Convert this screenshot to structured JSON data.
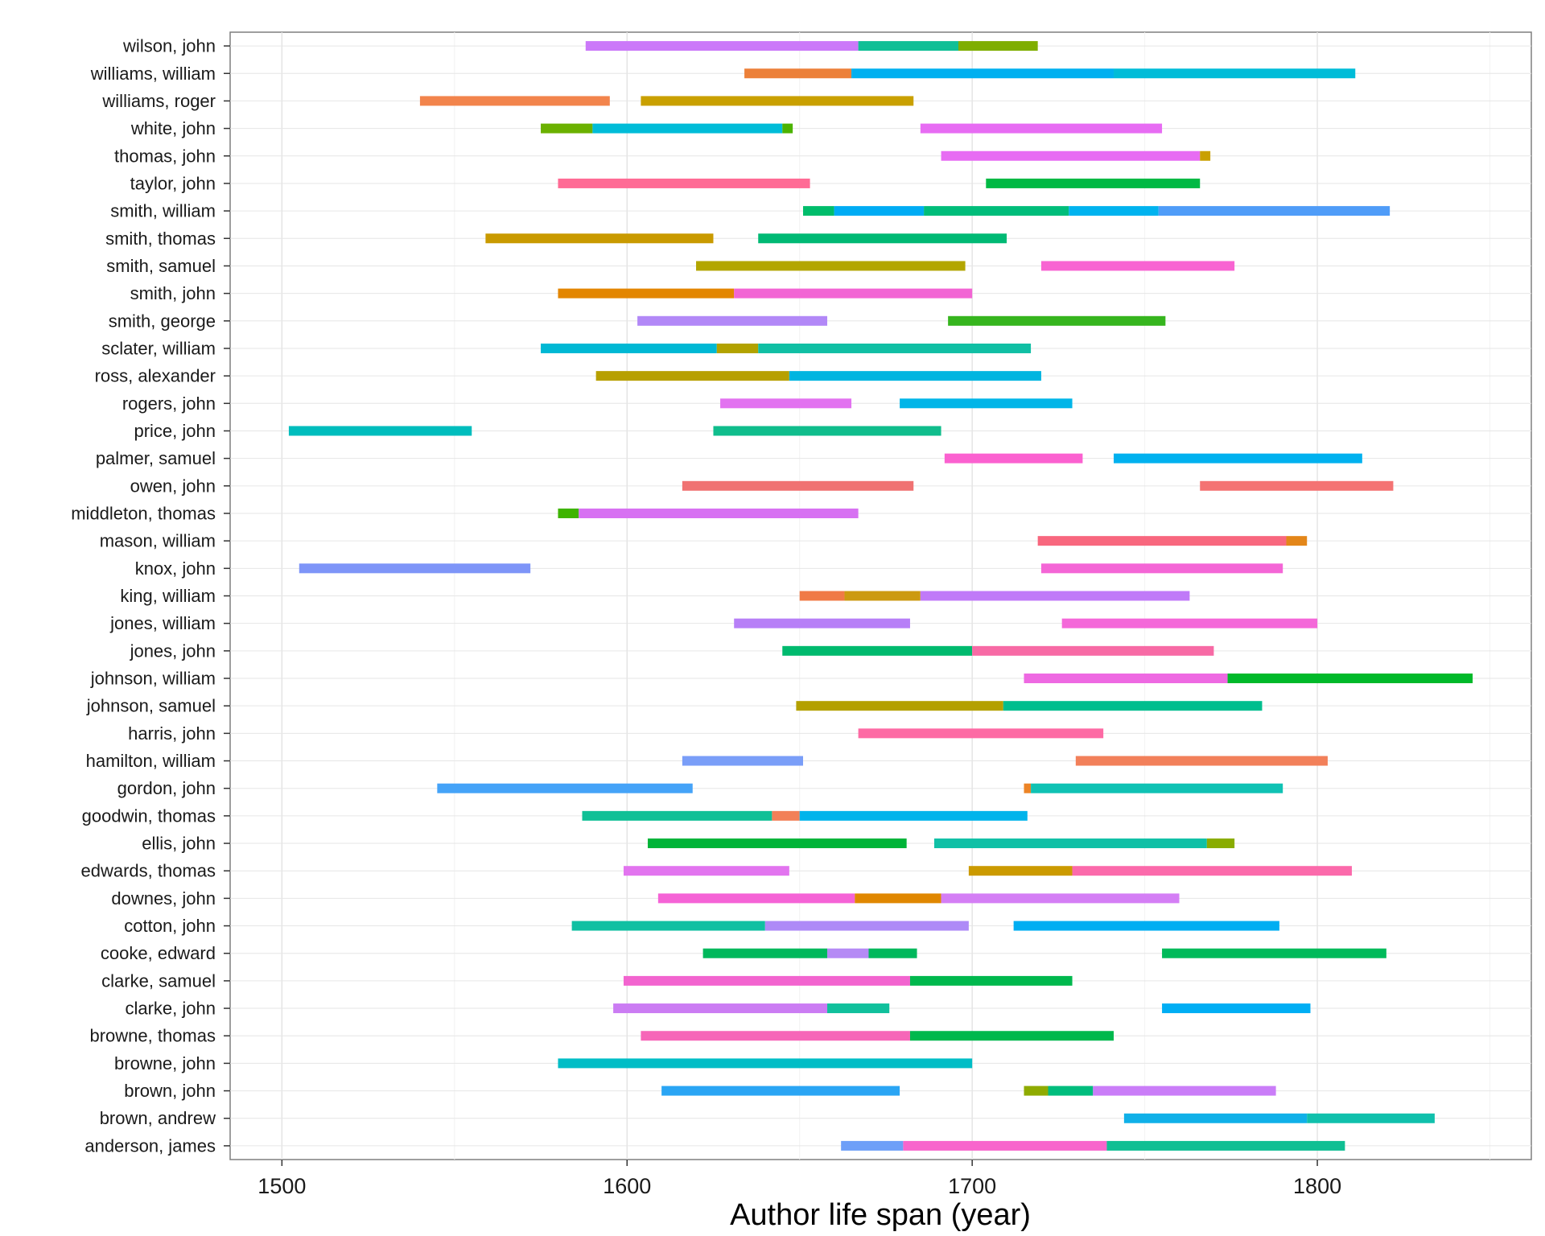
{
  "chart_data": {
    "type": "bar",
    "subtype": "horizontal-timeline-segments",
    "title": "",
    "xlabel": "Author life span (year)",
    "ylabel": "",
    "xlim": [
      1485,
      1862
    ],
    "x_ticks": [
      1500,
      1600,
      1700,
      1800
    ],
    "grid": true,
    "legend": "none",
    "categories": [
      "wilson, john",
      "williams, william",
      "williams, roger",
      "white, john",
      "thomas, john",
      "taylor, john",
      "smith, william",
      "smith, thomas",
      "smith, samuel",
      "smith, john",
      "smith, george",
      "sclater, william",
      "ross, alexander",
      "rogers, john",
      "price, john",
      "palmer, samuel",
      "owen, john",
      "middleton, thomas",
      "mason, william",
      "knox, john",
      "king, william",
      "jones, william",
      "jones, john",
      "johnson, william",
      "johnson, samuel",
      "harris, john",
      "hamilton, william",
      "gordon, john",
      "goodwin, thomas",
      "ellis, john",
      "edwards, thomas",
      "downes, john",
      "cotton, john",
      "cooke, edward",
      "clarke, samuel",
      "clarke, john",
      "browne, thomas",
      "browne, john",
      "brown, john",
      "brown, andrew",
      "anderson, james"
    ],
    "rows": [
      {
        "name": "wilson, john",
        "segments": [
          [
            1588,
            1667,
            "#cb79f9"
          ],
          [
            1667,
            1696,
            "#10bf96"
          ],
          [
            1696,
            1719,
            "#7fae00"
          ]
        ]
      },
      {
        "name": "williams, william",
        "segments": [
          [
            1634,
            1665,
            "#ec8039"
          ],
          [
            1665,
            1741,
            "#00b0f0"
          ],
          [
            1741,
            1811,
            "#00bcd8"
          ]
        ]
      },
      {
        "name": "williams, roger",
        "segments": [
          [
            1540,
            1595,
            "#f2844c"
          ],
          [
            1604,
            1683,
            "#c9a000"
          ]
        ]
      },
      {
        "name": "white, john",
        "segments": [
          [
            1575,
            1590,
            "#6bb100"
          ],
          [
            1590,
            1645,
            "#00bcd8"
          ],
          [
            1645,
            1648,
            "#4cb300"
          ],
          [
            1685,
            1755,
            "#e76cf3"
          ]
        ]
      },
      {
        "name": "thomas, john",
        "segments": [
          [
            1691,
            1766,
            "#e76cf3"
          ],
          [
            1766,
            1769,
            "#c9a000"
          ]
        ]
      },
      {
        "name": "taylor, john",
        "segments": [
          [
            1580,
            1653,
            "#ff6b95"
          ],
          [
            1704,
            1766,
            "#00b944"
          ]
        ]
      },
      {
        "name": "smith, william",
        "segments": [
          [
            1651,
            1660,
            "#00bd6b"
          ],
          [
            1660,
            1686,
            "#00acf4"
          ],
          [
            1686,
            1728,
            "#00bd7a"
          ],
          [
            1728,
            1754,
            "#00b3ef"
          ],
          [
            1754,
            1821,
            "#4f9cf8"
          ]
        ]
      },
      {
        "name": "smith, thomas",
        "segments": [
          [
            1559,
            1625,
            "#c99a00"
          ],
          [
            1638,
            1710,
            "#00b974"
          ]
        ]
      },
      {
        "name": "smith, samuel",
        "segments": [
          [
            1620,
            1698,
            "#b3a600"
          ],
          [
            1720,
            1776,
            "#f864d2"
          ]
        ]
      },
      {
        "name": "smith, john",
        "segments": [
          [
            1580,
            1631,
            "#e38600"
          ],
          [
            1631,
            1700,
            "#f265d4"
          ]
        ]
      },
      {
        "name": "smith, george",
        "segments": [
          [
            1603,
            1658,
            "#b288f7"
          ],
          [
            1693,
            1756,
            "#36b51e"
          ]
        ]
      },
      {
        "name": "sclater, william",
        "segments": [
          [
            1575,
            1626,
            "#00b8d4"
          ],
          [
            1626,
            1638,
            "#b2a200"
          ],
          [
            1638,
            1717,
            "#10bfa4"
          ]
        ]
      },
      {
        "name": "ross, alexander",
        "segments": [
          [
            1591,
            1647,
            "#b7a000"
          ],
          [
            1647,
            1720,
            "#00b5e0"
          ]
        ]
      },
      {
        "name": "rogers, john",
        "segments": [
          [
            1627,
            1665,
            "#e272f0"
          ],
          [
            1679,
            1729,
            "#00b5e8"
          ]
        ]
      },
      {
        "name": "price, john",
        "segments": [
          [
            1502,
            1555,
            "#00bdbd"
          ],
          [
            1625,
            1691,
            "#10bd8c"
          ]
        ]
      },
      {
        "name": "palmer, samuel",
        "segments": [
          [
            1692,
            1732,
            "#fb61d0"
          ],
          [
            1741,
            1813,
            "#00b1ef"
          ]
        ]
      },
      {
        "name": "owen, john",
        "segments": [
          [
            1616,
            1683,
            "#f07272"
          ],
          [
            1766,
            1822,
            "#f47373"
          ]
        ]
      },
      {
        "name": "middleton, thomas",
        "segments": [
          [
            1580,
            1586,
            "#3eb400"
          ],
          [
            1586,
            1667,
            "#d771f2"
          ]
        ]
      },
      {
        "name": "mason, william",
        "segments": [
          [
            1719,
            1791,
            "#f8677e"
          ],
          [
            1791,
            1797,
            "#e38619"
          ]
        ]
      },
      {
        "name": "knox, john",
        "segments": [
          [
            1505,
            1572,
            "#7e95f8"
          ],
          [
            1720,
            1790,
            "#f466d6"
          ]
        ]
      },
      {
        "name": "king, william",
        "segments": [
          [
            1650,
            1663,
            "#f07a46"
          ],
          [
            1663,
            1685,
            "#cc9a10"
          ],
          [
            1685,
            1763,
            "#c07af8"
          ]
        ]
      },
      {
        "name": "jones, william",
        "segments": [
          [
            1631,
            1682,
            "#b77ff7"
          ],
          [
            1726,
            1800,
            "#f468d9"
          ]
        ]
      },
      {
        "name": "jones, john",
        "segments": [
          [
            1645,
            1700,
            "#00ba6e"
          ],
          [
            1700,
            1770,
            "#f76aa5"
          ]
        ]
      },
      {
        "name": "johnson, william",
        "segments": [
          [
            1715,
            1774,
            "#ee69e2"
          ],
          [
            1774,
            1845,
            "#00b92a"
          ]
        ]
      },
      {
        "name": "johnson, samuel",
        "segments": [
          [
            1649,
            1709,
            "#b4a000"
          ],
          [
            1709,
            1784,
            "#00be8e"
          ]
        ]
      },
      {
        "name": "harris, john",
        "segments": [
          [
            1667,
            1738,
            "#fd6aa4"
          ]
        ]
      },
      {
        "name": "hamilton, william",
        "segments": [
          [
            1616,
            1651,
            "#7a9ef8"
          ],
          [
            1730,
            1803,
            "#f2805a"
          ]
        ]
      },
      {
        "name": "gordon, john",
        "segments": [
          [
            1545,
            1619,
            "#45a3f8"
          ],
          [
            1715,
            1717,
            "#ec8426"
          ],
          [
            1717,
            1790,
            "#10c2b4"
          ]
        ]
      },
      {
        "name": "goodwin, thomas",
        "segments": [
          [
            1587,
            1642,
            "#10c096"
          ],
          [
            1642,
            1650,
            "#f28058"
          ],
          [
            1650,
            1716,
            "#00b4eb"
          ]
        ]
      },
      {
        "name": "ellis, john",
        "segments": [
          [
            1606,
            1681,
            "#00b438"
          ],
          [
            1689,
            1768,
            "#10c0a6"
          ],
          [
            1768,
            1776,
            "#89ac00"
          ]
        ]
      },
      {
        "name": "edwards, thomas",
        "segments": [
          [
            1599,
            1647,
            "#e274ef"
          ],
          [
            1699,
            1729,
            "#cb9a00"
          ],
          [
            1729,
            1810,
            "#fb6aab"
          ]
        ]
      },
      {
        "name": "downes, john",
        "segments": [
          [
            1609,
            1666,
            "#f563d6"
          ],
          [
            1666,
            1691,
            "#e08700"
          ],
          [
            1691,
            1760,
            "#d47ef5"
          ]
        ]
      },
      {
        "name": "cotton, john",
        "segments": [
          [
            1584,
            1640,
            "#10c0a2"
          ],
          [
            1640,
            1699,
            "#ae8af7"
          ],
          [
            1712,
            1789,
            "#00aef2"
          ]
        ]
      },
      {
        "name": "cooke, edward",
        "segments": [
          [
            1622,
            1658,
            "#00b85c"
          ],
          [
            1658,
            1670,
            "#b58af5"
          ],
          [
            1670,
            1684,
            "#00b85c"
          ],
          [
            1755,
            1820,
            "#00ba5a"
          ]
        ]
      },
      {
        "name": "clarke, samuel",
        "segments": [
          [
            1599,
            1682,
            "#f264cf"
          ],
          [
            1682,
            1729,
            "#00b84d"
          ]
        ]
      },
      {
        "name": "clarke, john",
        "segments": [
          [
            1596,
            1658,
            "#cb7cf3"
          ],
          [
            1658,
            1676,
            "#10c09c"
          ],
          [
            1755,
            1798,
            "#00aef4"
          ]
        ]
      },
      {
        "name": "browne, thomas",
        "segments": [
          [
            1604,
            1682,
            "#f666b8"
          ],
          [
            1682,
            1741,
            "#00b84d"
          ]
        ]
      },
      {
        "name": "browne, john",
        "segments": [
          [
            1580,
            1700,
            "#00bdc6"
          ]
        ]
      },
      {
        "name": "brown, john",
        "segments": [
          [
            1610,
            1679,
            "#2aa5f4"
          ],
          [
            1715,
            1722,
            "#8fab00"
          ],
          [
            1722,
            1735,
            "#00bd7d"
          ],
          [
            1735,
            1788,
            "#ca7df8"
          ]
        ]
      },
      {
        "name": "brown, andrew",
        "segments": [
          [
            1744,
            1797,
            "#10b0e8"
          ],
          [
            1797,
            1834,
            "#10c0ac"
          ]
        ]
      },
      {
        "name": "anderson, james",
        "segments": [
          [
            1662,
            1680,
            "#6e9ff8"
          ],
          [
            1680,
            1739,
            "#f865cc"
          ],
          [
            1739,
            1808,
            "#10bf93"
          ]
        ]
      }
    ]
  }
}
